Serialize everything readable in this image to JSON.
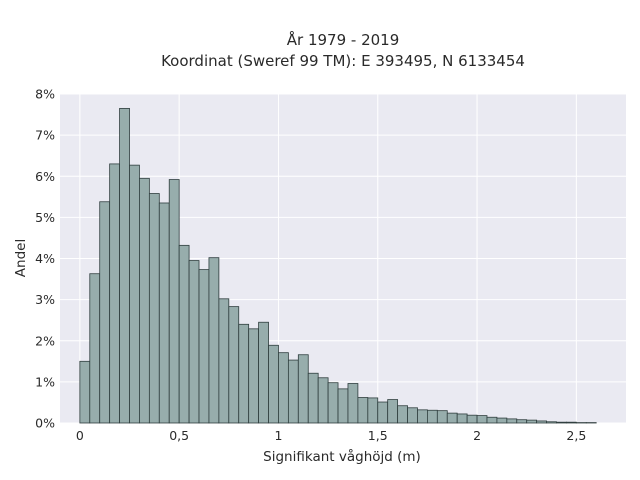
{
  "chart_data": {
    "type": "bar",
    "title": "År 1979 - 2019",
    "subtitle": "Koordinat (Sweref 99 TM): E 393495, N 6133454",
    "xlabel": "Signifikant våghöjd (m)",
    "ylabel": "Andel",
    "xlim": [
      -0.1,
      2.75
    ],
    "ylim": [
      0,
      8
    ],
    "x_ticks": [
      {
        "value": 0,
        "label": "0"
      },
      {
        "value": 0.5,
        "label": "0,5"
      },
      {
        "value": 1,
        "label": "1"
      },
      {
        "value": 1.5,
        "label": "1,5"
      },
      {
        "value": 2,
        "label": "2"
      },
      {
        "value": 2.5,
        "label": "2,5"
      }
    ],
    "y_ticks": [
      {
        "value": 0,
        "label": "0%"
      },
      {
        "value": 1,
        "label": "1%"
      },
      {
        "value": 2,
        "label": "2%"
      },
      {
        "value": 3,
        "label": "3%"
      },
      {
        "value": 4,
        "label": "4%"
      },
      {
        "value": 5,
        "label": "5%"
      },
      {
        "value": 6,
        "label": "6%"
      },
      {
        "value": 7,
        "label": "7%"
      },
      {
        "value": 8,
        "label": "8%"
      }
    ],
    "grid": true,
    "bin_width": 0.05,
    "bin_starts": [
      0.0,
      0.05,
      0.1,
      0.15,
      0.2,
      0.25,
      0.3,
      0.35,
      0.4,
      0.45,
      0.5,
      0.55,
      0.6,
      0.65,
      0.7,
      0.75,
      0.8,
      0.85,
      0.9,
      0.95,
      1.0,
      1.05,
      1.1,
      1.15,
      1.2,
      1.25,
      1.3,
      1.35,
      1.4,
      1.45,
      1.5,
      1.55,
      1.6,
      1.65,
      1.7,
      1.75,
      1.8,
      1.85,
      1.9,
      1.95,
      2.0,
      2.05,
      2.1,
      2.15,
      2.2,
      2.25,
      2.3,
      2.35,
      2.4,
      2.45,
      2.5,
      2.55
    ],
    "values": [
      1.5,
      3.63,
      5.38,
      6.3,
      7.65,
      6.27,
      5.95,
      5.58,
      5.35,
      5.92,
      4.32,
      3.95,
      3.73,
      4.02,
      3.02,
      2.83,
      2.4,
      2.29,
      2.45,
      1.89,
      1.71,
      1.53,
      1.66,
      1.21,
      1.1,
      0.98,
      0.83,
      0.96,
      0.62,
      0.61,
      0.51,
      0.57,
      0.42,
      0.37,
      0.32,
      0.31,
      0.3,
      0.24,
      0.22,
      0.19,
      0.18,
      0.14,
      0.12,
      0.1,
      0.08,
      0.07,
      0.05,
      0.03,
      0.02,
      0.02,
      0.01,
      0.01
    ],
    "colors": {
      "bar_fill": "#97adac",
      "bar_edge": "#2f3e3e",
      "plot_bg": "#eaeaf2",
      "grid": "#ffffff"
    }
  }
}
